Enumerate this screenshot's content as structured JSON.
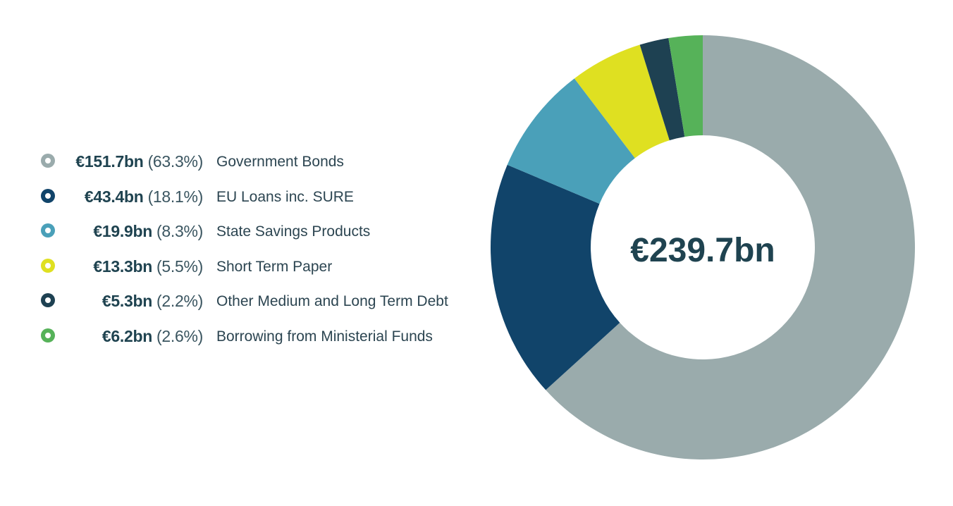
{
  "chart_data": {
    "type": "pie",
    "variant": "donut",
    "center_label": "€239.7bn",
    "start_angle": "top",
    "direction": "clockwise",
    "legend_position": "left",
    "series": [
      {
        "name": "Government Bonds",
        "value": 151.7,
        "value_label": "€151.7bn",
        "percent": 63.3,
        "percent_label": "(63.3%)",
        "color": "#9aabac"
      },
      {
        "name": "EU Loans inc. SURE",
        "value": 43.4,
        "value_label": "€43.4bn",
        "percent": 18.1,
        "percent_label": "(18.1%)",
        "color": "#11446a"
      },
      {
        "name": "State Savings Products",
        "value": 19.9,
        "value_label": "€19.9bn",
        "percent": 8.3,
        "percent_label": "(8.3%)",
        "color": "#4aa0b9"
      },
      {
        "name": "Short Term Paper",
        "value": 13.3,
        "value_label": "€13.3bn",
        "percent": 5.5,
        "percent_label": "(5.5%)",
        "color": "#dfe021"
      },
      {
        "name": "Other Medium and Long Term Debt",
        "value": 5.3,
        "value_label": "€5.3bn",
        "percent": 2.2,
        "percent_label": "(2.2%)",
        "color": "#1e4152"
      },
      {
        "name": "Borrowing from Ministerial Funds",
        "value": 6.2,
        "value_label": "€6.2bn",
        "percent": 2.6,
        "percent_label": "(2.6%)",
        "color": "#56b259"
      }
    ]
  },
  "colors": {
    "text_dark": "#1f4350",
    "center_text": "#1f4350"
  }
}
